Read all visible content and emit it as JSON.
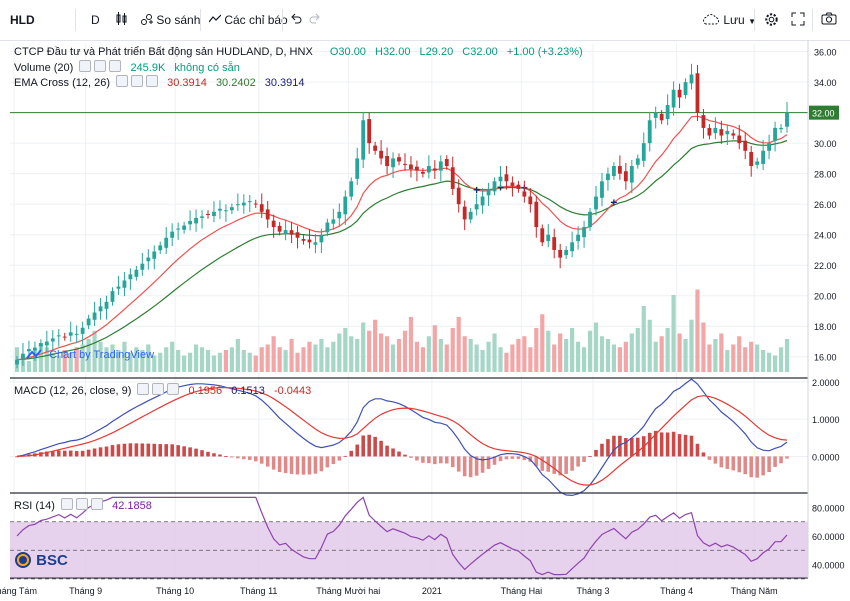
{
  "toolbar": {
    "symbol": "HLD",
    "interval": "D",
    "compare_label": "So sánh",
    "indicators_label": "Các chỉ báo",
    "save_label": "Lưu"
  },
  "legend": {
    "title": "CTCP Đầu tư và Phát triển Bất động sản HUDLAND, D, HNX",
    "open": "O30.00",
    "high": "H32.00",
    "low": "L29.20",
    "close": "C32.00",
    "change": "+1.00 (+3.23%)",
    "volume_label": "Volume (20)",
    "volume_value": "245.9K",
    "volume_na": "không có sẵn",
    "ema_label": "EMA Cross (12, 26)",
    "ema_v1": "30.3914",
    "ema_v2": "30.2402",
    "ema_v3": "30.3914",
    "macd_label": "MACD (12, 26, close, 9)",
    "macd_hist": "0.1956",
    "macd_line": "0.1513",
    "macd_signal": "-0.0443",
    "rsi_label": "RSI (14)",
    "rsi_value": "42.1858"
  },
  "watermark": "Chart by TradingView",
  "bsc_logo": "BSC",
  "colors": {
    "up": "#26a69a",
    "down": "#c62828",
    "ema_fast": "#ef5350",
    "ema_slow": "#2e7d32",
    "macd_line": "#3f51b5",
    "signal_line": "#e53935",
    "rsi_line": "#8e44ad",
    "rsi_band": "#e1c7e8",
    "price_line": "#2e7d32"
  },
  "chart_data": {
    "type": "candlestick",
    "x_tick_labels": [
      "Tháng Tám",
      "Tháng 9",
      "Tháng 10",
      "Tháng 11",
      "Tháng Mười hai",
      "2021",
      "Tháng Hai",
      "Tháng 3",
      "Tháng 4",
      "Tháng Năm"
    ],
    "price_axis_labels": [
      "16.00",
      "18.00",
      "20.00",
      "22.00",
      "24.00",
      "26.00",
      "28.00",
      "30.00",
      "32.00",
      "34.00",
      "36.00"
    ],
    "price_ylim": [
      15,
      36.5
    ],
    "last_price": "32.00",
    "close": [
      15.8,
      16.2,
      16.5,
      16.6,
      16.9,
      17.0,
      17.2,
      17.4,
      17.3,
      17.6,
      17.5,
      17.9,
      18.5,
      18.9,
      19.3,
      19.6,
      20.3,
      20.6,
      21.0,
      21.4,
      21.7,
      22.1,
      22.5,
      22.9,
      23.3,
      23.8,
      24.2,
      24.4,
      24.6,
      24.9,
      25.1,
      25.2,
      25.3,
      25.5,
      25.7,
      25.6,
      25.8,
      26.0,
      26.1,
      26.2,
      26.0,
      25.5,
      25.0,
      24.5,
      24.2,
      24.3,
      24.0,
      23.8,
      23.6,
      23.5,
      23.5,
      24.0,
      24.8,
      25.0,
      25.5,
      26.5,
      27.5,
      29.0,
      31.5,
      30.0,
      29.5,
      29.0,
      28.5,
      29.0,
      28.8,
      28.6,
      28.3,
      28.2,
      28.0,
      28.5,
      28.2,
      28.8,
      28.5,
      27.0,
      26.0,
      25.0,
      25.5,
      26.0,
      26.5,
      27.0,
      27.5,
      27.8,
      27.5,
      27.2,
      27.0,
      26.5,
      26.0,
      24.5,
      23.5,
      24.0,
      23.0,
      22.5,
      23.0,
      23.5,
      24.0,
      24.5,
      25.5,
      26.5,
      27.5,
      28.0,
      28.5,
      28.0,
      27.5,
      28.5,
      29.0,
      30.0,
      31.5,
      32.0,
      31.5,
      32.5,
      33.5,
      33.0,
      34.0,
      34.5,
      32.0,
      31.0,
      30.5,
      31.0,
      30.5,
      30.8,
      30.5,
      30.0,
      29.5,
      28.5,
      28.8,
      29.5,
      30.0,
      31.0,
      31.0,
      32.0
    ],
    "volume": [
      0.9,
      0.6,
      0.4,
      0.8,
      1.0,
      0.9,
      0.7,
      0.6,
      0.8,
      0.7,
      0.9,
      1.0,
      1.2,
      1.5,
      1.1,
      0.9,
      1.0,
      0.8,
      1.1,
      0.7,
      0.9,
      0.8,
      1.0,
      0.6,
      0.7,
      0.9,
      1.1,
      0.8,
      0.6,
      0.7,
      1.0,
      0.9,
      0.8,
      0.6,
      0.7,
      0.8,
      0.9,
      1.2,
      0.8,
      0.7,
      0.6,
      0.9,
      1.0,
      1.3,
      0.9,
      0.8,
      1.2,
      0.7,
      0.9,
      1.1,
      1.0,
      1.2,
      0.9,
      1.1,
      1.4,
      1.6,
      1.3,
      1.2,
      1.8,
      1.5,
      1.9,
      1.4,
      1.3,
      1.0,
      1.2,
      1.5,
      2.0,
      1.1,
      0.9,
      1.3,
      1.7,
      1.2,
      1.0,
      1.6,
      2.0,
      1.3,
      1.2,
      1.0,
      0.8,
      1.1,
      1.4,
      0.9,
      0.7,
      1.0,
      1.2,
      1.3,
      0.9,
      1.6,
      2.1,
      1.5,
      1.0,
      1.4,
      1.2,
      1.6,
      1.1,
      0.9,
      1.5,
      1.8,
      1.3,
      1.2,
      1.0,
      0.9,
      1.1,
      1.4,
      1.6,
      2.4,
      1.9,
      1.1,
      1.3,
      1.6,
      2.8,
      1.4,
      1.2,
      1.9,
      3.0,
      1.8,
      1.0,
      1.2,
      1.4,
      0.8,
      1.0,
      1.3,
      0.9,
      1.1,
      1.0,
      0.8,
      0.7,
      0.6,
      0.9,
      1.2
    ],
    "macd_axis_labels": [
      "0.0000",
      "1.0000",
      "2.0000"
    ],
    "macd_ylim": [
      -0.9,
      2.05
    ],
    "rsi_axis_labels": [
      "40.0000",
      "60.0000",
      "80.0000"
    ],
    "rsi_ylim": [
      32,
      88
    ],
    "rsi_band": [
      30,
      70
    ],
    "rsi_reference_labels": [
      "70",
      "50",
      "30"
    ]
  }
}
